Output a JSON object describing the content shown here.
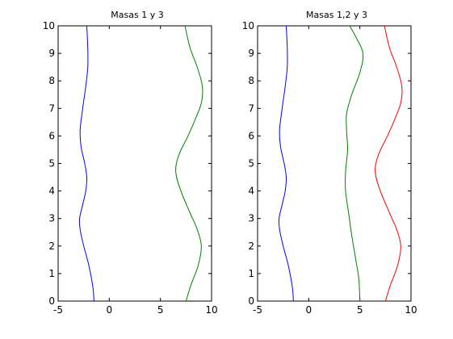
{
  "chart_data": [
    {
      "type": "line",
      "title": "Masas 1 y 3",
      "xlabel": "",
      "ylabel": "",
      "xlim": [
        -5,
        10
      ],
      "ylim": [
        0,
        10
      ],
      "xticks": [
        -5,
        0,
        5,
        10
      ],
      "yticks": [
        0,
        1,
        2,
        3,
        4,
        5,
        6,
        7,
        8,
        9,
        10
      ],
      "grid": false,
      "series": [
        {
          "color": "#0000ff",
          "points": [
            [
              -1.5,
              0
            ],
            [
              -1.6,
              0.5
            ],
            [
              -2.0,
              1.3
            ],
            [
              -2.5,
              2.0
            ],
            [
              -2.85,
              2.6
            ],
            [
              -2.9,
              3.0
            ],
            [
              -2.6,
              3.5
            ],
            [
              -2.3,
              4.0
            ],
            [
              -2.2,
              4.5
            ],
            [
              -2.4,
              5.0
            ],
            [
              -2.75,
              5.6
            ],
            [
              -2.85,
              6.2
            ],
            [
              -2.6,
              7.0
            ],
            [
              -2.3,
              7.8
            ],
            [
              -2.1,
              8.5
            ],
            [
              -2.1,
              9.2
            ],
            [
              -2.2,
              10
            ]
          ]
        },
        {
          "color": "#008000",
          "points": [
            [
              7.5,
              0
            ],
            [
              8.0,
              0.6
            ],
            [
              8.7,
              1.3
            ],
            [
              9.0,
              2.0
            ],
            [
              8.6,
              2.6
            ],
            [
              7.9,
              3.2
            ],
            [
              7.0,
              4.0
            ],
            [
              6.5,
              4.7
            ],
            [
              6.8,
              5.3
            ],
            [
              7.7,
              6.0
            ],
            [
              8.4,
              6.6
            ],
            [
              9.0,
              7.2
            ],
            [
              9.1,
              7.8
            ],
            [
              8.6,
              8.5
            ],
            [
              7.9,
              9.2
            ],
            [
              7.4,
              10
            ]
          ]
        }
      ]
    },
    {
      "type": "line",
      "title": "Masas 1,2 y 3",
      "xlabel": "",
      "ylabel": "",
      "xlim": [
        -5,
        10
      ],
      "ylim": [
        0,
        10
      ],
      "xticks": [
        -5,
        0,
        5,
        10
      ],
      "yticks": [
        0,
        1,
        2,
        3,
        4,
        5,
        6,
        7,
        8,
        9,
        10
      ],
      "grid": false,
      "series": [
        {
          "color": "#0000ff",
          "points": [
            [
              -1.5,
              0
            ],
            [
              -1.6,
              0.5
            ],
            [
              -2.0,
              1.3
            ],
            [
              -2.5,
              2.0
            ],
            [
              -2.85,
              2.6
            ],
            [
              -2.9,
              3.0
            ],
            [
              -2.6,
              3.5
            ],
            [
              -2.3,
              4.0
            ],
            [
              -2.2,
              4.5
            ],
            [
              -2.4,
              5.0
            ],
            [
              -2.75,
              5.6
            ],
            [
              -2.85,
              6.2
            ],
            [
              -2.6,
              7.0
            ],
            [
              -2.3,
              7.8
            ],
            [
              -2.1,
              8.5
            ],
            [
              -2.1,
              9.2
            ],
            [
              -2.2,
              10
            ]
          ]
        },
        {
          "color": "#008000",
          "points": [
            [
              5.0,
              0
            ],
            [
              4.9,
              0.8
            ],
            [
              4.6,
              1.5
            ],
            [
              4.2,
              2.4
            ],
            [
              3.9,
              3.2
            ],
            [
              3.6,
              4.0
            ],
            [
              3.6,
              4.7
            ],
            [
              3.8,
              5.5
            ],
            [
              3.7,
              6.2
            ],
            [
              3.7,
              6.8
            ],
            [
              4.2,
              7.5
            ],
            [
              5.0,
              8.3
            ],
            [
              5.3,
              9.0
            ],
            [
              4.6,
              9.6
            ],
            [
              4.0,
              10
            ]
          ]
        },
        {
          "color": "#ff0000",
          "points": [
            [
              7.5,
              0
            ],
            [
              8.0,
              0.6
            ],
            [
              8.7,
              1.3
            ],
            [
              9.0,
              2.0
            ],
            [
              8.6,
              2.6
            ],
            [
              7.9,
              3.2
            ],
            [
              7.0,
              4.0
            ],
            [
              6.5,
              4.7
            ],
            [
              6.8,
              5.3
            ],
            [
              7.7,
              6.0
            ],
            [
              8.4,
              6.6
            ],
            [
              9.0,
              7.2
            ],
            [
              9.1,
              7.8
            ],
            [
              8.6,
              8.5
            ],
            [
              7.9,
              9.2
            ],
            [
              7.4,
              10
            ]
          ]
        }
      ]
    }
  ]
}
